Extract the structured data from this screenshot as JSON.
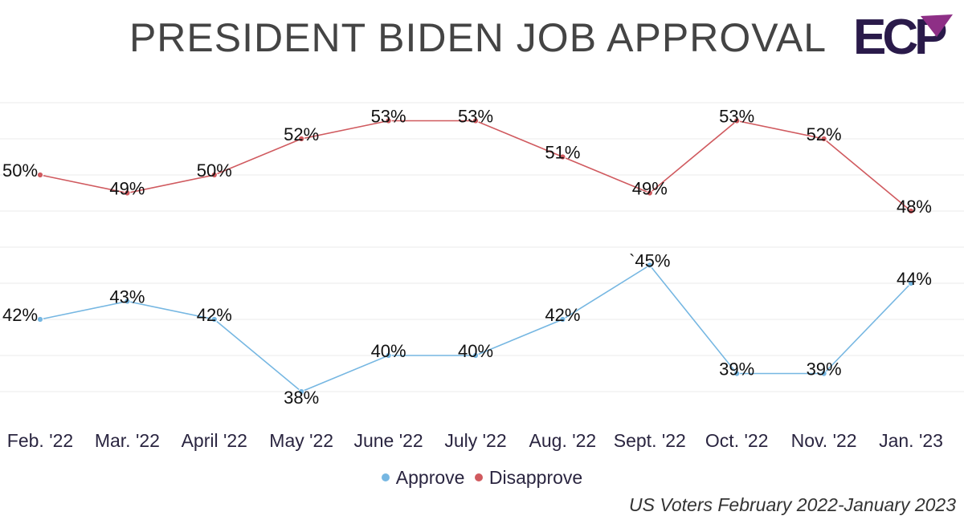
{
  "colors": {
    "approve": "#76b7e2",
    "disapprove": "#d05a5f",
    "gridline": "#ebebeb",
    "logo_dark": "#2a1a4a",
    "logo_accent": "#8e2f86"
  },
  "logo": {
    "text": "ECP"
  },
  "chart_data": {
    "type": "line",
    "title": "PRESIDENT BIDEN JOB APPROVAL",
    "subtitle": "US Voters February 2022-January 2023",
    "categories": [
      "Feb. '22",
      "Mar. '22",
      "April '22",
      "May '22",
      "June '22",
      "July '22",
      "Aug. '22",
      "Sept. '22",
      "Oct. '22",
      "Nov. '22",
      "Jan. '23"
    ],
    "series": [
      {
        "name": "Approve",
        "values": [
          42,
          43,
          42,
          38,
          40,
          40,
          42,
          45,
          39,
          39,
          44
        ],
        "labels": [
          "42%",
          "43%",
          "42%",
          "38%",
          "40%",
          "40%",
          "42%",
          "`45%",
          "39%",
          "39%",
          "44%"
        ]
      },
      {
        "name": "Disapprove",
        "values": [
          50,
          49,
          50,
          52,
          53,
          53,
          51,
          49,
          53,
          52,
          48
        ],
        "labels": [
          "50%",
          "49%",
          "50%",
          "52%",
          "53%",
          "53%",
          "51%",
          "49%",
          "53%",
          "52%",
          "48%"
        ]
      }
    ],
    "ylim": [
      38,
      54
    ],
    "grid": true,
    "legend": "bottom-center",
    "xlabel": "",
    "ylabel": ""
  }
}
